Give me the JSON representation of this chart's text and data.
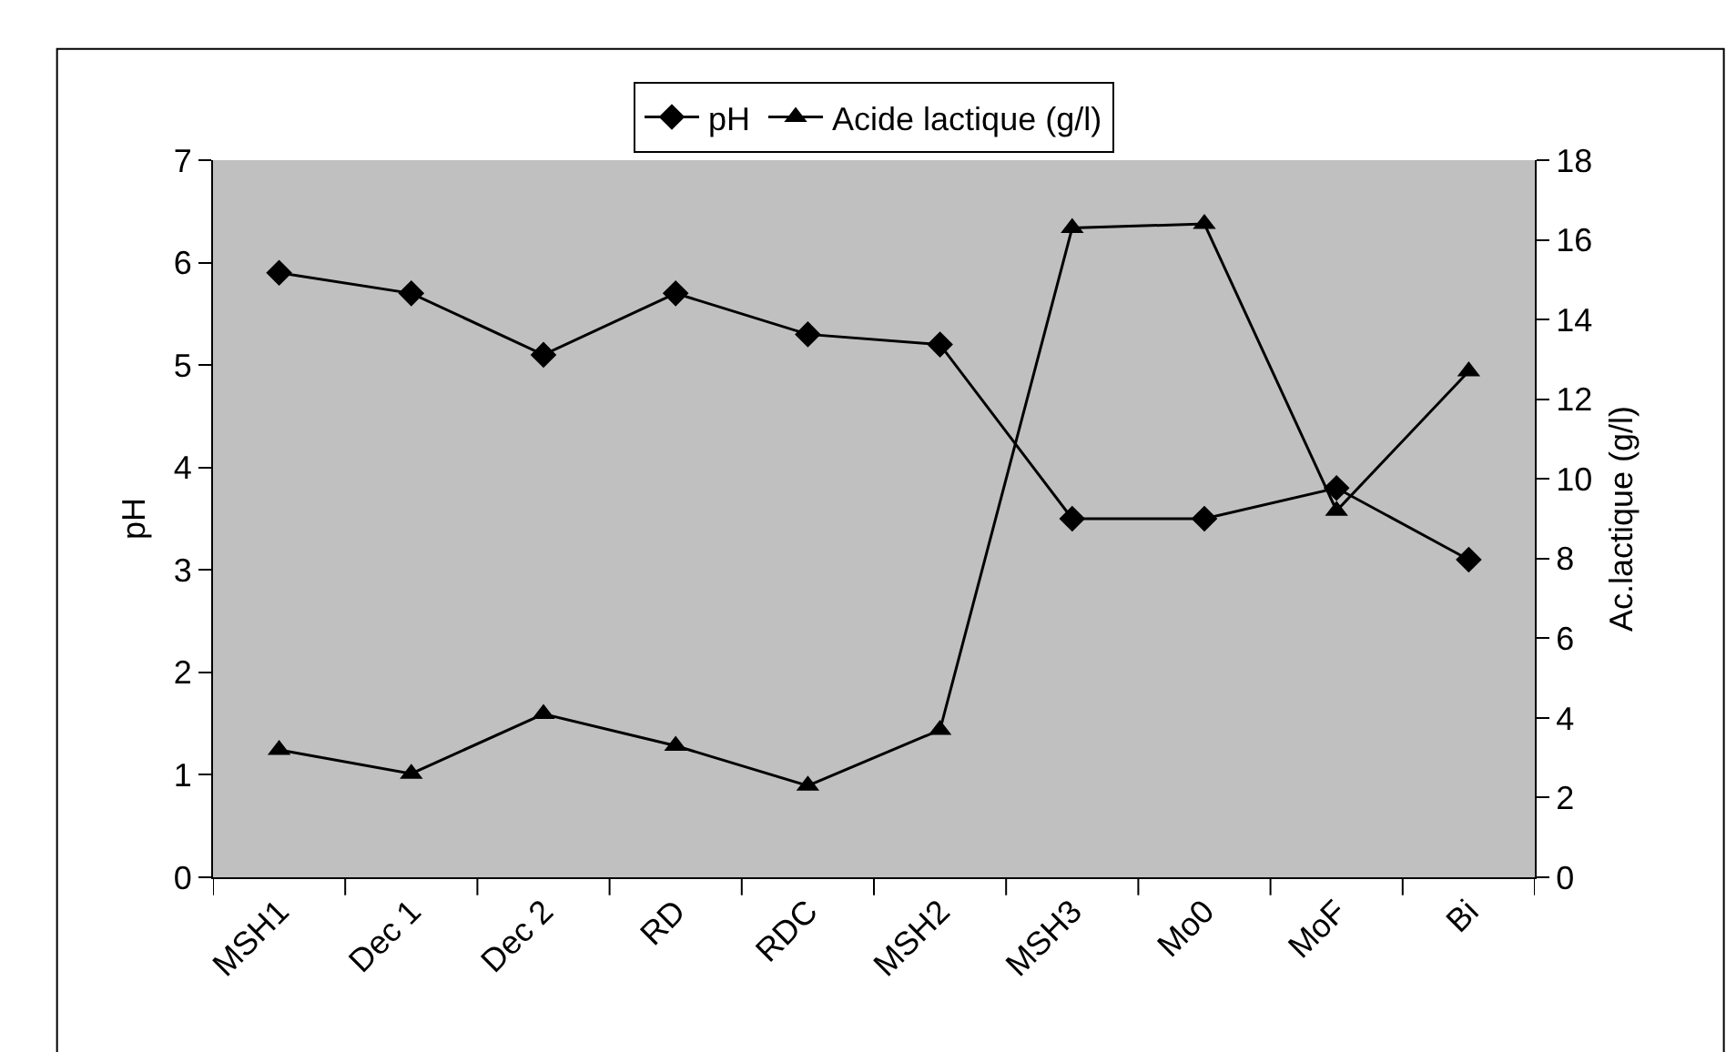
{
  "chart_data": {
    "type": "line",
    "categories": [
      "MSH1",
      "Dec 1",
      "Dec 2",
      "RD",
      "RDC",
      "MSH2",
      "MSH3",
      "Mo0",
      "MoF",
      "Bi"
    ],
    "series": [
      {
        "name": "pH",
        "color": "#000000",
        "marker": "diamond",
        "values": [
          5.9,
          5.7,
          5.1,
          5.7,
          5.3,
          5.2,
          3.5,
          3.5,
          3.8,
          3.1
        ]
      },
      {
        "name": "Acide lactique (g/l)",
        "color": "#000000",
        "marker": "triangle",
        "axis": "y2",
        "values": [
          3.2,
          2.6,
          4.1,
          3.3,
          2.3,
          3.7,
          16.3,
          16.4,
          9.2,
          12.7
        ]
      }
    ],
    "ylabel": "pH",
    "y2label": "Ac.lactique (g/l)",
    "ylim": [
      0,
      7
    ],
    "yticks": [
      0,
      1,
      2,
      3,
      4,
      5,
      6,
      7
    ],
    "y2lim": [
      0,
      18
    ],
    "y2ticks": [
      0,
      2,
      4,
      6,
      8,
      10,
      12,
      14,
      16,
      18
    ],
    "grid": false,
    "legend": "top",
    "line_style": "solid"
  }
}
